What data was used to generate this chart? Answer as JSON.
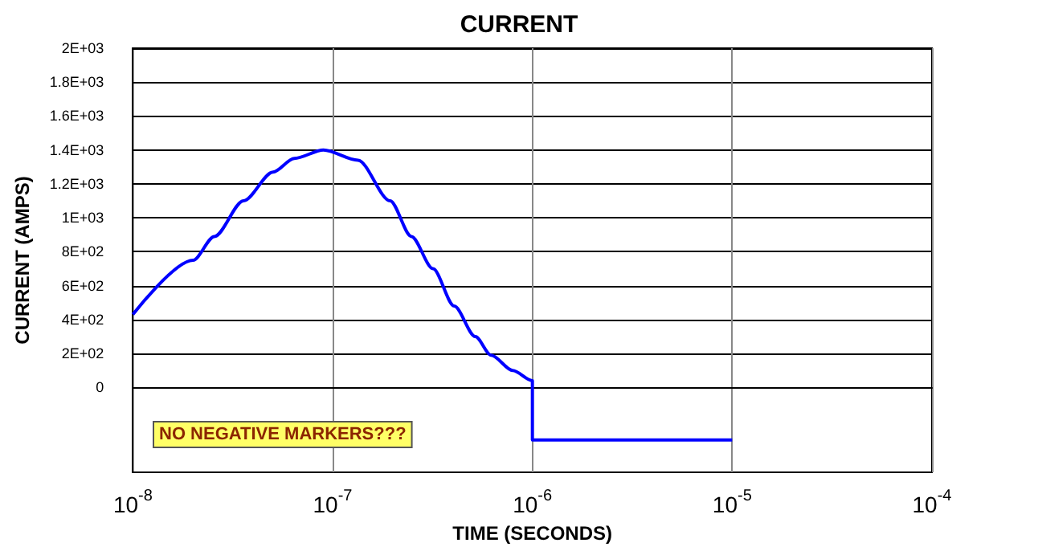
{
  "chart_data": {
    "type": "line",
    "title": "CURRENT",
    "xlabel": "TIME (SECONDS)",
    "ylabel": "CURRENT (AMPS)",
    "annotations": [
      "NO NEGATIVE MARKERS???"
    ],
    "series": [
      {
        "color": "#0000ff",
        "x": [
          1e-08,
          2e-08,
          2.56e-08,
          3.58e-08,
          5.03e-08,
          6.43e-08,
          9e-08,
          1.34e-07,
          1.94e-07,
          2.48e-07,
          3.18e-07,
          4.06e-07,
          5.18e-07,
          6.22e-07,
          7.97e-07,
          1e-06,
          1e-06,
          1e-05
        ],
        "values": [
          430,
          750,
          890,
          1100,
          1270,
          1350,
          1400,
          1340,
          1100,
          890,
          700,
          480,
          300,
          190,
          100,
          40,
          -310,
          -310
        ]
      }
    ],
    "log": "x",
    "xlim": [
      1e-08,
      0.0001
    ],
    "xticks": [
      {
        "value": 1e-08,
        "label": "10$^{-8}$"
      },
      {
        "value": 1e-07,
        "label": "10$^{-7}$"
      },
      {
        "value": 1e-06,
        "label": "10$^{-6}$"
      },
      {
        "value": 1e-05,
        "label": "10$^{-5}$"
      },
      {
        "value": 0.0001,
        "label": "10$^{-4}$"
      }
    ],
    "ylim": [
      -500,
      2000
    ],
    "yticks": [
      0,
      {
        "value": 200,
        "label": "2E+02"
      },
      {
        "value": 400,
        "label": "4E+02"
      },
      {
        "value": 600,
        "label": "6E+02"
      },
      {
        "value": 800,
        "label": "8E+02"
      },
      {
        "value": 1000,
        "label": "1E+03"
      },
      {
        "value": 1200,
        "label": "1.2E+03"
      },
      {
        "value": 1400,
        "label": "1.4E+03"
      },
      {
        "value": 1600,
        "label": "1.6E+03"
      },
      {
        "value": 1800,
        "label": "1.8E+03"
      },
      {
        "value": 2000,
        "label": "2E+03"
      }
    ],
    "grid": true,
    "marker": "none",
    "line_style": "solid"
  }
}
